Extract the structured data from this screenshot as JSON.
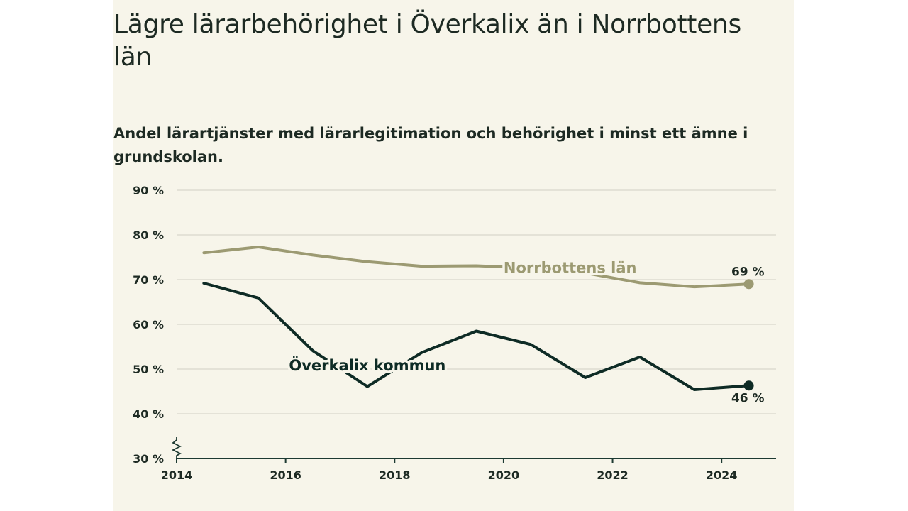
{
  "colors": {
    "background": "#f7f5ea",
    "text": "#1d2a23",
    "grid": "#d9d7cc",
    "axis": "#1d3a32",
    "series_norrbotten": "#9c9a72",
    "series_overkalix": "#0e2b25"
  },
  "chart_data": {
    "type": "line",
    "title": "Lägre lärarbehörighet i Överkalix än i Norrbottens län",
    "subtitle": "Andel lärartjänster med lärarlegitimation och behörighet i minst ett ämne i grundskolan.",
    "x_ticks": [
      "2014",
      "2016",
      "2018",
      "2020",
      "2022",
      "2024"
    ],
    "y_ticks": [
      "30 %",
      "40 %",
      "50 %",
      "60 %",
      "70 %",
      "80 %",
      "90 %"
    ],
    "xlim": [
      2014,
      2025
    ],
    "ylim": [
      30,
      90
    ],
    "grid": true,
    "axis_break": true,
    "series": [
      {
        "name": "Norrbottens län",
        "color": "#9c9a72",
        "end_label": "69 %",
        "points": [
          {
            "x": 2014.5,
            "y": 76
          },
          {
            "x": 2015.5,
            "y": 77.3
          },
          {
            "x": 2016.5,
            "y": 75.5
          },
          {
            "x": 2017.5,
            "y": 74
          },
          {
            "x": 2018.5,
            "y": 73
          },
          {
            "x": 2019.5,
            "y": 73.1
          },
          {
            "x": 2020.5,
            "y": 72.6
          },
          {
            "x": 2021.5,
            "y": 71.5
          },
          {
            "x": 2022.5,
            "y": 69.3
          },
          {
            "x": 2023.5,
            "y": 68.4
          },
          {
            "x": 2024.5,
            "y": 69
          }
        ]
      },
      {
        "name": "Överkalix kommun",
        "color": "#0e2b25",
        "end_label": "46 %",
        "points": [
          {
            "x": 2014.5,
            "y": 69.2
          },
          {
            "x": 2015.5,
            "y": 65.9
          },
          {
            "x": 2016.5,
            "y": 54.1
          },
          {
            "x": 2017.5,
            "y": 46.1
          },
          {
            "x": 2018.5,
            "y": 53.7
          },
          {
            "x": 2019.5,
            "y": 58.5
          },
          {
            "x": 2020.5,
            "y": 55.5
          },
          {
            "x": 2021.5,
            "y": 48.1
          },
          {
            "x": 2022.5,
            "y": 52.7
          },
          {
            "x": 2023.5,
            "y": 45.4
          },
          {
            "x": 2024.5,
            "y": 46.3
          }
        ]
      }
    ]
  }
}
